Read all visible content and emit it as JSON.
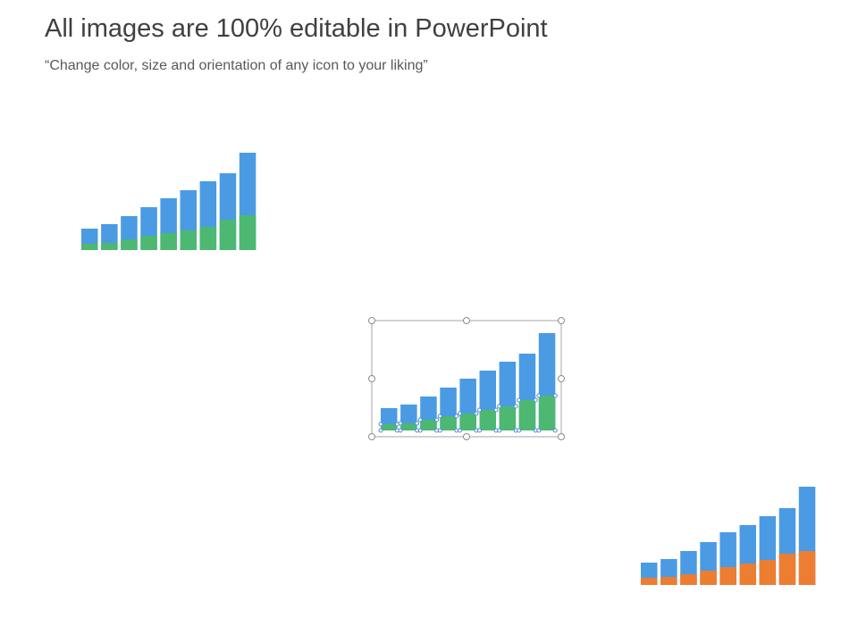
{
  "header": {
    "title": "All images are 100% editable in PowerPoint",
    "subtitle": "“Change color, size and orientation of any icon to your liking”"
  }
}
